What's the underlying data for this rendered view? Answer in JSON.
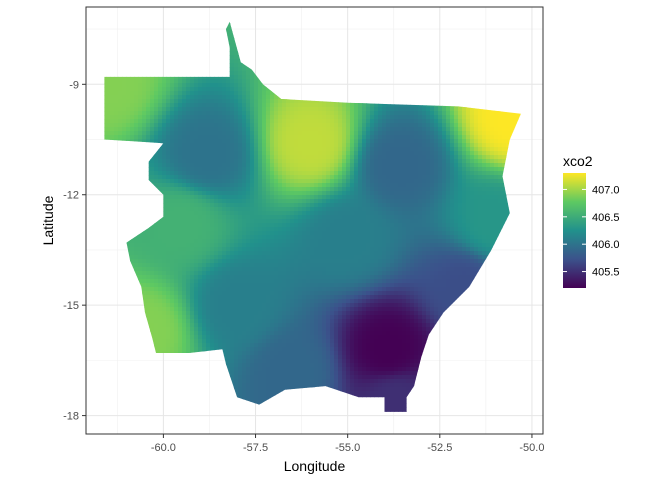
{
  "chart_data": {
    "type": "heatmap",
    "title": "",
    "xlabel": "Longitude",
    "ylabel": "Latitude",
    "xlim": [
      -62.1,
      -49.7
    ],
    "ylim": [
      -18.5,
      -6.9
    ],
    "x_ticks": [
      -60.0,
      -57.5,
      -55.0,
      -52.5,
      -50.0
    ],
    "x_tick_labels": [
      "-60.0",
      "-57.5",
      "-55.0",
      "-52.5",
      "-50.0"
    ],
    "y_ticks": [
      -9,
      -12,
      -15,
      -18
    ],
    "y_tick_labels": [
      "-9",
      "-12",
      "-15",
      "-18"
    ],
    "grid": true,
    "legend": {
      "title": "xco2",
      "position": "right",
      "range": [
        405.2,
        407.3
      ],
      "breaks": [
        407.0,
        406.5,
        406.0,
        405.5
      ],
      "break_labels": [
        "407.0",
        "406.5",
        "406.0",
        "405.5"
      ]
    },
    "colorscale": [
      "#440154",
      "#3b528b",
      "#21918c",
      "#5ec962",
      "#fde725"
    ],
    "region_outline": [
      [
        -58.2,
        -7.3
      ],
      [
        -57.9,
        -8.4
      ],
      [
        -57.6,
        -8.6
      ],
      [
        -57.3,
        -9.0
      ],
      [
        -56.8,
        -9.4
      ],
      [
        -55.0,
        -9.5
      ],
      [
        -52.0,
        -9.6
      ],
      [
        -50.3,
        -9.8
      ],
      [
        -50.6,
        -10.5
      ],
      [
        -50.8,
        -11.5
      ],
      [
        -50.6,
        -12.5
      ],
      [
        -51.1,
        -13.5
      ],
      [
        -51.7,
        -14.5
      ],
      [
        -52.4,
        -15.2
      ],
      [
        -52.8,
        -15.8
      ],
      [
        -53.0,
        -16.4
      ],
      [
        -53.2,
        -17.2
      ],
      [
        -53.4,
        -17.5
      ],
      [
        -53.4,
        -17.9
      ],
      [
        -54.0,
        -17.9
      ],
      [
        -54.0,
        -17.5
      ],
      [
        -54.7,
        -17.5
      ],
      [
        -55.6,
        -17.2
      ],
      [
        -56.7,
        -17.3
      ],
      [
        -57.4,
        -17.7
      ],
      [
        -58.0,
        -17.5
      ],
      [
        -58.3,
        -16.6
      ],
      [
        -58.4,
        -16.2
      ],
      [
        -59.3,
        -16.3
      ],
      [
        -60.2,
        -16.3
      ],
      [
        -60.3,
        -15.9
      ],
      [
        -60.5,
        -15.2
      ],
      [
        -60.6,
        -14.5
      ],
      [
        -60.9,
        -13.8
      ],
      [
        -61.0,
        -13.3
      ],
      [
        -60.4,
        -12.9
      ],
      [
        -60.0,
        -12.6
      ],
      [
        -60.0,
        -12.0
      ],
      [
        -60.4,
        -11.6
      ],
      [
        -60.4,
        -11.1
      ],
      [
        -60.0,
        -10.6
      ],
      [
        -61.6,
        -10.5
      ],
      [
        -61.6,
        -9.8
      ],
      [
        -61.6,
        -8.8
      ],
      [
        -60.5,
        -8.8
      ],
      [
        -58.8,
        -8.8
      ],
      [
        -58.2,
        -8.8
      ],
      [
        -58.2,
        -8.0
      ],
      [
        -58.3,
        -7.5
      ]
    ],
    "field_centers": [
      {
        "x": -61.5,
        "y": -9.0,
        "value": 406.9
      },
      {
        "x": -58.8,
        "y": -10.9,
        "value": 406.0
      },
      {
        "x": -56.0,
        "y": -10.6,
        "value": 407.1
      },
      {
        "x": -53.6,
        "y": -11.2,
        "value": 405.9
      },
      {
        "x": -50.5,
        "y": -9.9,
        "value": 407.3
      },
      {
        "x": -51.0,
        "y": -12.8,
        "value": 406.3
      },
      {
        "x": -59.5,
        "y": -12.8,
        "value": 406.55
      },
      {
        "x": -55.0,
        "y": -13.2,
        "value": 406.1
      },
      {
        "x": -60.5,
        "y": -15.7,
        "value": 406.9
      },
      {
        "x": -58.0,
        "y": -15.0,
        "value": 406.1
      },
      {
        "x": -53.9,
        "y": -16.2,
        "value": 405.2
      },
      {
        "x": -56.5,
        "y": -16.8,
        "value": 405.9
      },
      {
        "x": -53.7,
        "y": -17.6,
        "value": 405.5
      },
      {
        "x": -51.8,
        "y": -14.5,
        "value": 405.7
      }
    ]
  }
}
